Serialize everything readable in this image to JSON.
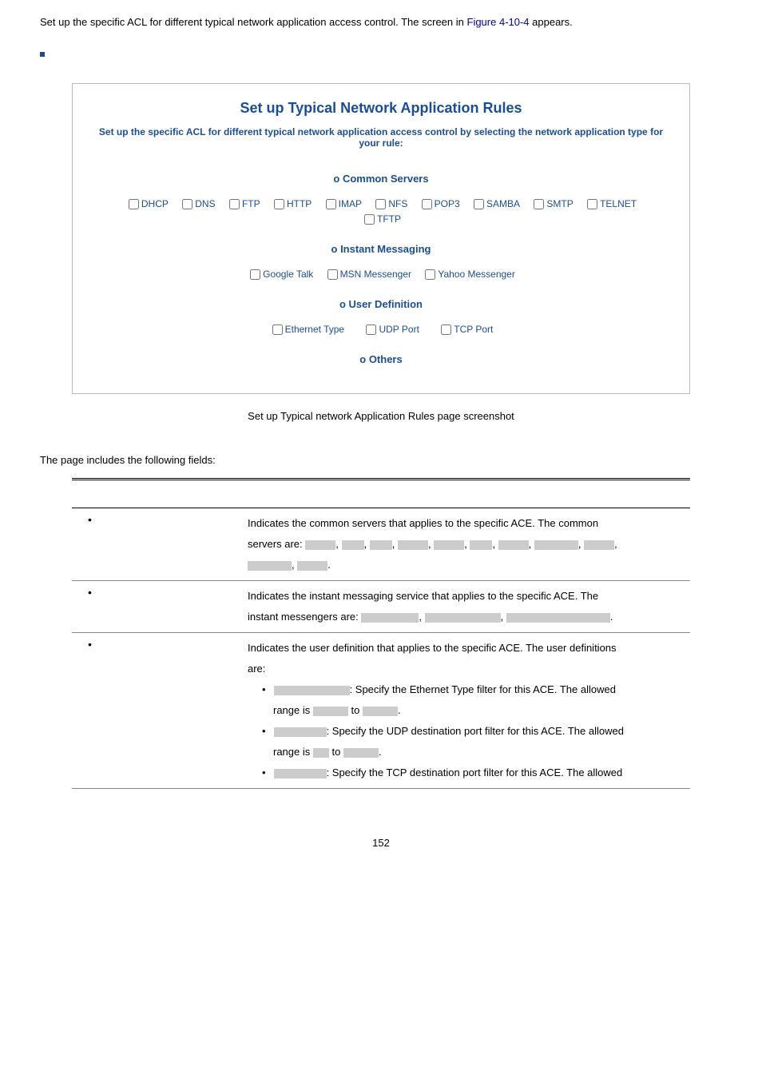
{
  "intro": {
    "text_before": "Set up the specific ACL for different typical network application access control. The screen in ",
    "figure_ref": "Figure 4-10-4",
    "text_after": " appears."
  },
  "panel": {
    "title": "Set up Typical Network Application Rules",
    "subtitle": "Set up the specific ACL for different typical network application access control by selecting the network application type for your rule:",
    "sections": {
      "common_servers": {
        "heading": "o Common Servers",
        "items": [
          "DHCP",
          "DNS",
          "FTP",
          "HTTP",
          "IMAP",
          "NFS",
          "POP3",
          "SAMBA",
          "SMTP",
          "TELNET",
          "TFTP"
        ]
      },
      "instant_messaging": {
        "heading": "o Instant Messaging",
        "items": [
          "Google Talk",
          "MSN Messenger",
          "Yahoo Messenger"
        ]
      },
      "user_definition": {
        "heading": "o User Definition",
        "items": [
          "Ethernet Type",
          "UDP Port",
          "TCP Port"
        ]
      },
      "others": {
        "heading": "o Others"
      }
    }
  },
  "caption": "Set up Typical network Application Rules page screenshot",
  "fields_intro": "The page includes the following fields:",
  "table": {
    "row1": {
      "l1": "Indicates the common servers that applies to the specific ACE. The common",
      "l2a": "servers are:"
    },
    "row2": {
      "l1": "Indicates the instant messaging service that applies to the specific ACE. The",
      "l2a": "instant messengers are:"
    },
    "row3": {
      "l1": "Indicates the user definition that applies to the specific ACE. The user definitions",
      "l2": "are:",
      "eth": ": Specify the Ethernet Type filter for this ACE. The allowed",
      "range_is": "range is",
      "to": "to",
      "udp": ": Specify the UDP destination port filter for this ACE. The allowed",
      "tcp": ": Specify the TCP destination port filter for this ACE. The allowed"
    }
  },
  "pagenum": "152"
}
